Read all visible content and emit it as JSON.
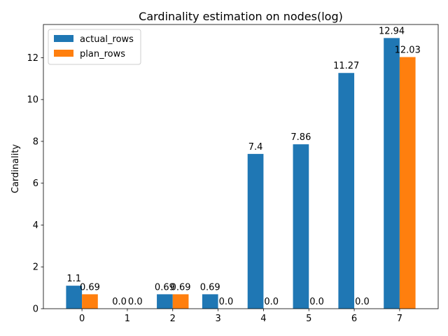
{
  "chart_data": {
    "type": "bar",
    "title": "Cardinality estimation on nodes(log)",
    "xlabel": "",
    "ylabel": "Cardinality",
    "categories": [
      "0",
      "1",
      "2",
      "3",
      "4",
      "5",
      "6",
      "7"
    ],
    "series": [
      {
        "name": "actual_rows",
        "color": "#1f77b4",
        "values": [
          1.1,
          0.0,
          0.69,
          0.69,
          7.4,
          7.86,
          11.27,
          12.94
        ],
        "labels": [
          "1.1",
          "0.0",
          "0.69",
          "0.69",
          "7.4",
          "7.86",
          "11.27",
          "12.94"
        ]
      },
      {
        "name": "plan_rows",
        "color": "#ff7f0e",
        "values": [
          0.69,
          0.0,
          0.69,
          0.0,
          0.0,
          0.0,
          0.0,
          12.03
        ],
        "labels": [
          "0.69",
          "0.0",
          "0.69",
          "0.0",
          "0.0",
          "0.0",
          "0.0",
          "12.03"
        ]
      }
    ],
    "ylim": [
      0,
      13.587
    ],
    "yticks": [
      0,
      2,
      4,
      6,
      8,
      10,
      12
    ],
    "grid": false,
    "legend": "top-left"
  }
}
